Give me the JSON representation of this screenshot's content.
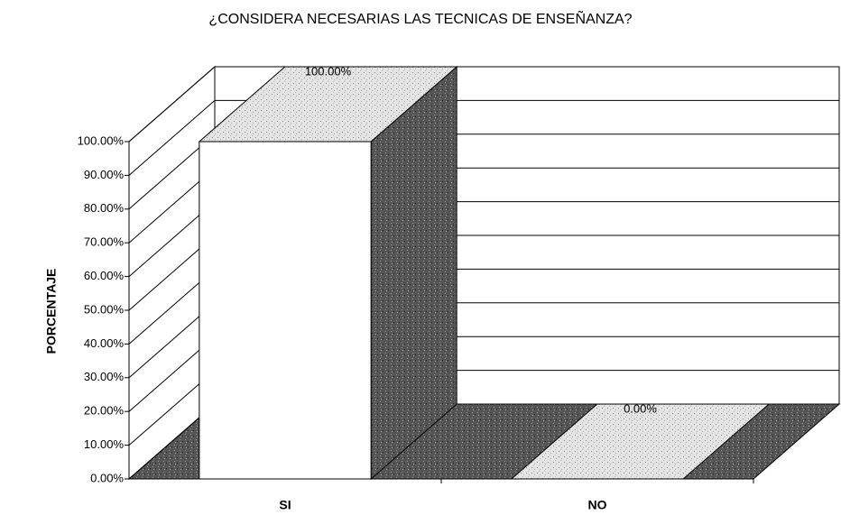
{
  "chart_data": {
    "type": "bar3d",
    "title": "¿CONSIDERA NECESARIAS LAS TECNICAS DE ENSEÑANZA?",
    "y_label": "PORCENTAJE",
    "categories": [
      "SI",
      "NO"
    ],
    "values": [
      100,
      0
    ],
    "value_labels": [
      "100.00%",
      "0.00%"
    ],
    "ylim": [
      0,
      100
    ],
    "yticks": [
      {
        "value": 0,
        "label": "0.00%"
      },
      {
        "value": 10,
        "label": "10.00%"
      },
      {
        "value": 20,
        "label": "20.00%"
      },
      {
        "value": 30,
        "label": "30.00%"
      },
      {
        "value": 40,
        "label": "40.00%"
      },
      {
        "value": 50,
        "label": "50.00%"
      },
      {
        "value": 60,
        "label": "60.00%"
      },
      {
        "value": 70,
        "label": "70.00%"
      },
      {
        "value": 80,
        "label": "80.00%"
      },
      {
        "value": 90,
        "label": "90.00%"
      },
      {
        "value": 100,
        "label": "100.00%"
      }
    ],
    "grid": true,
    "color": "#ffffff"
  }
}
